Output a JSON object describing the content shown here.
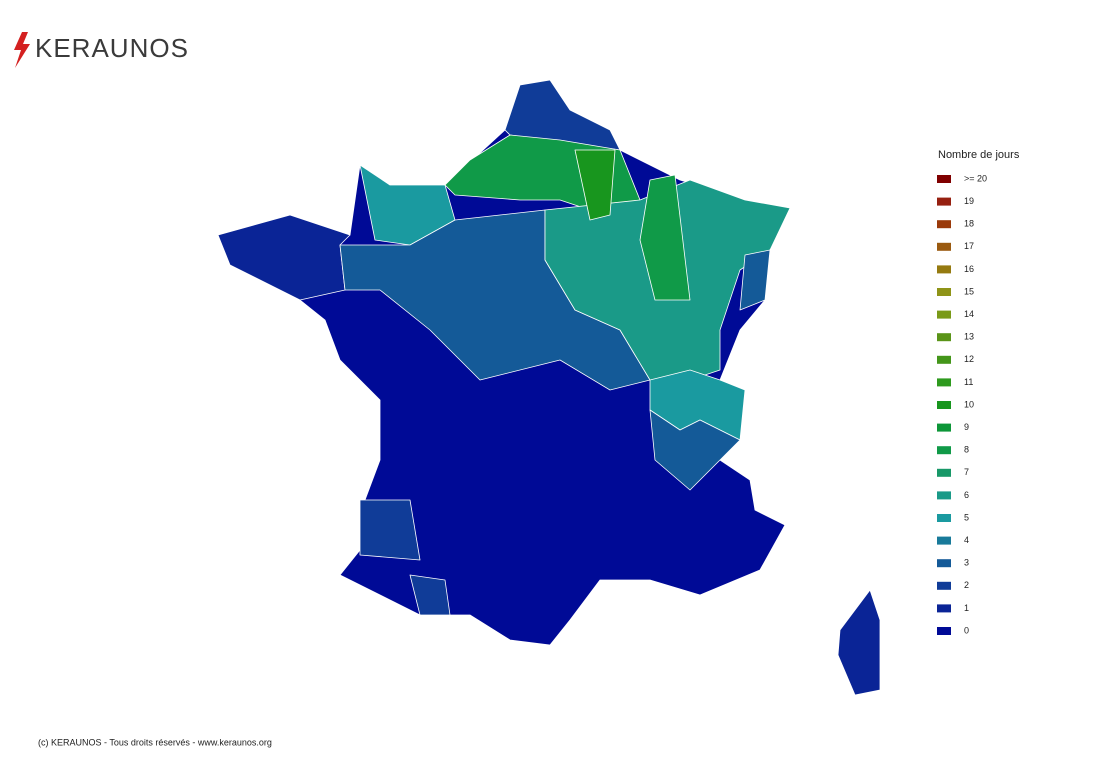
{
  "header": {
    "logo": "KERAUNOS"
  },
  "legend": {
    "title": "Nombre de jours",
    "items": [
      {
        "label": ">= 20",
        "color": "#800000"
      },
      {
        "label": "19",
        "color": "#962010"
      },
      {
        "label": "18",
        "color": "#9a3a0a"
      },
      {
        "label": "17",
        "color": "#9a5a10"
      },
      {
        "label": "16",
        "color": "#957a10"
      },
      {
        "label": "15",
        "color": "#8f9418"
      },
      {
        "label": "14",
        "color": "#7a9a18"
      },
      {
        "label": "13",
        "color": "#5a9418"
      },
      {
        "label": "12",
        "color": "#44961a"
      },
      {
        "label": "11",
        "color": "#2e9a1e"
      },
      {
        "label": "10",
        "color": "#18961e"
      },
      {
        "label": "9",
        "color": "#0d9638"
      },
      {
        "label": "8",
        "color": "#109a48"
      },
      {
        "label": "7",
        "color": "#189868"
      },
      {
        "label": "6",
        "color": "#1a9a88"
      },
      {
        "label": "5",
        "color": "#1a9aa0"
      },
      {
        "label": "4",
        "color": "#187a9a"
      },
      {
        "label": "3",
        "color": "#145a98"
      },
      {
        "label": "2",
        "color": "#103c98"
      },
      {
        "label": "1",
        "color": "#0a2496"
      },
      {
        "label": "0",
        "color": "#000a96"
      }
    ]
  },
  "footer": {
    "text": "(c) KERAUNOS - Tous droits réservés - www.keraunos.org"
  }
}
